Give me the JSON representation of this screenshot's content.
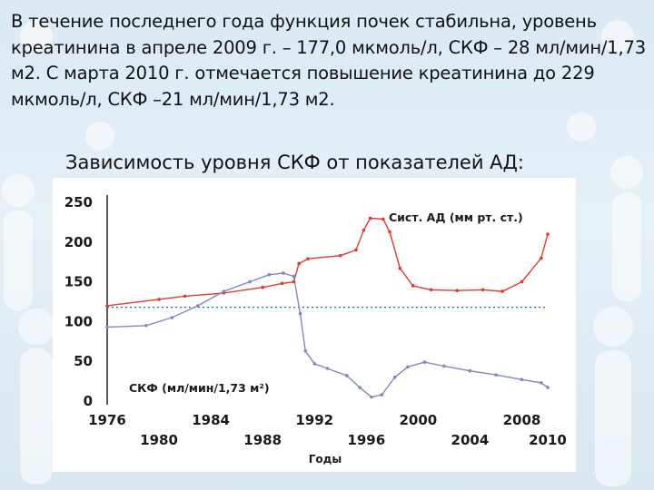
{
  "slide": {
    "paragraph": "В течение последнего года функция почек стабильна, уровень креатинина в апреле 2009 г. – 177,0 мкмоль/л, СКФ – 28 мл/мин/1,73 м2. С марта 2010 г. отмечается повышение креатинина до 229 мкмоль/л, СКФ –21 мл/мин/1,73 м2.",
    "heading": "Зависимость уровня СКФ от показателей АД:"
  },
  "chart_data": {
    "type": "line",
    "title": "",
    "xlabel": "Годы",
    "ylabel": "",
    "xlim": [
      1976,
      2010
    ],
    "ylim": [
      0,
      250
    ],
    "x_ticks": [
      1976,
      1980,
      1984,
      1988,
      1992,
      1996,
      2000,
      2004,
      2008,
      2010
    ],
    "y_ticks": [
      0,
      50,
      100,
      150,
      200,
      250
    ],
    "reference_line": {
      "y": 118,
      "style": "dotted",
      "color": "#1f5fb4"
    },
    "grid": false,
    "series": [
      {
        "name": "Сист. АД (мм рт. ст.)",
        "color": "#e03a2e",
        "points": [
          [
            1976,
            120
          ],
          [
            1980,
            128
          ],
          [
            1982,
            132
          ],
          [
            1985,
            136
          ],
          [
            1988,
            143
          ],
          [
            1989.5,
            148
          ],
          [
            1990.4,
            150
          ],
          [
            1990.8,
            173
          ],
          [
            1991.5,
            179
          ],
          [
            1994,
            183
          ],
          [
            1995.2,
            190
          ],
          [
            1995.8,
            215
          ],
          [
            1996.3,
            230
          ],
          [
            1997.3,
            229
          ],
          [
            1997.8,
            213
          ],
          [
            1998.6,
            167
          ],
          [
            1999.6,
            145
          ],
          [
            2001,
            140
          ],
          [
            2003,
            139
          ],
          [
            2005,
            140
          ],
          [
            2006.5,
            138
          ],
          [
            2008,
            150
          ],
          [
            2009.5,
            180
          ],
          [
            2010,
            210
          ]
        ]
      },
      {
        "name": "СКФ (мл/мин/1,73 м²)",
        "color": "#8088c0",
        "points": [
          [
            1976,
            93
          ],
          [
            1979,
            95
          ],
          [
            1981,
            105
          ],
          [
            1983,
            120
          ],
          [
            1985,
            138
          ],
          [
            1987,
            150
          ],
          [
            1988.5,
            159
          ],
          [
            1989.6,
            161
          ],
          [
            1990.4,
            157
          ],
          [
            1990.9,
            110
          ],
          [
            1991.3,
            63
          ],
          [
            1992,
            47
          ],
          [
            1993,
            41
          ],
          [
            1994.5,
            32
          ],
          [
            1995.5,
            17
          ],
          [
            1996.4,
            5
          ],
          [
            1997.2,
            8
          ],
          [
            1998.2,
            30
          ],
          [
            1999.2,
            43
          ],
          [
            2000.5,
            49
          ],
          [
            2002,
            44
          ],
          [
            2004,
            38
          ],
          [
            2006,
            33
          ],
          [
            2008,
            27
          ],
          [
            2009.5,
            23
          ],
          [
            2010,
            17
          ]
        ]
      }
    ]
  },
  "colors": {
    "accent": "#1f5fb4",
    "red_series": "#e03a2e",
    "gfr_series": "#8088c0"
  }
}
